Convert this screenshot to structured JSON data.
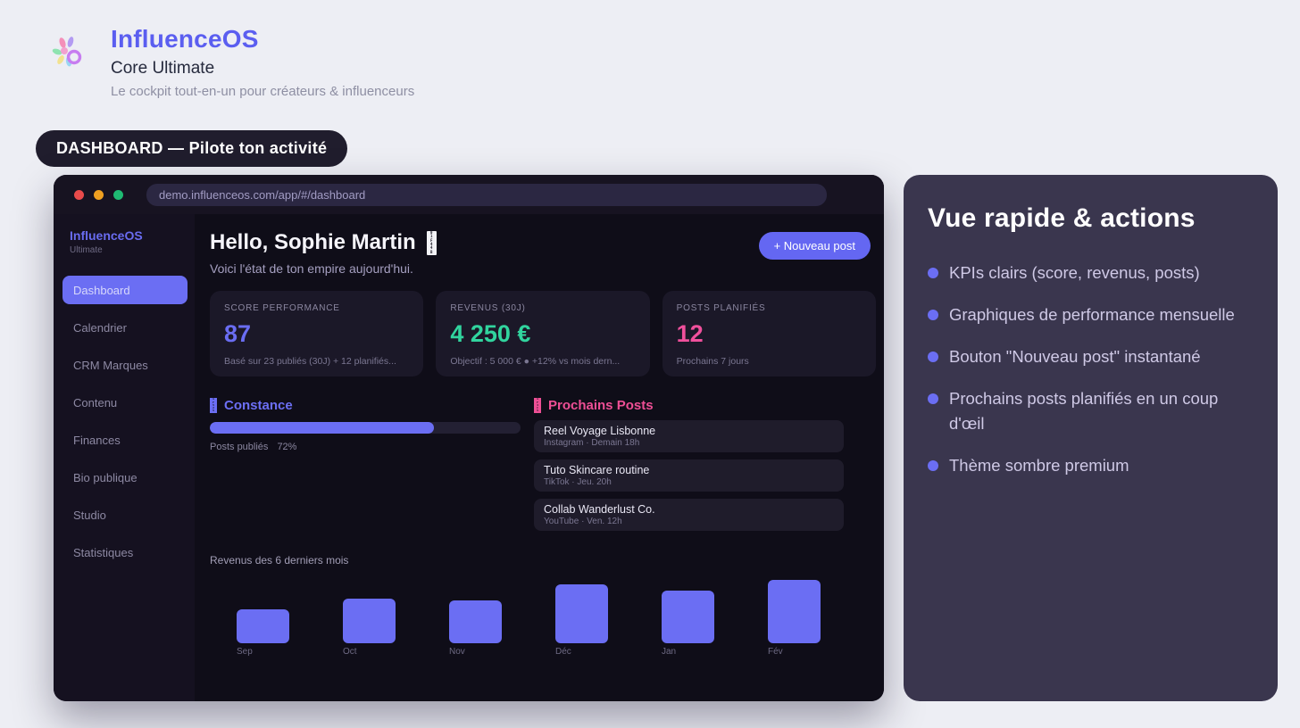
{
  "colors": {
    "accent_indigo": "#6b6ef3",
    "kpi_green": "#31d49e",
    "kpi_pink": "#f0509c",
    "traffic_red": "#e94b4b",
    "traffic_yellow": "#efa021",
    "traffic_green": "#1fba72",
    "panel_bg": "#3a364e",
    "window_bg": "#16131f"
  },
  "hero": {
    "title": "InfluenceOS",
    "subtitle": "Core Ultimate",
    "tagline": "Le cockpit tout-en-un pour créateurs & influenceurs"
  },
  "section_badge": "DASHBOARD — Pilote ton activité",
  "browser": {
    "url": "demo.influenceos.com/app/#/dashboard"
  },
  "sidebar": {
    "brand": "InfluenceOS",
    "plan": "Ultimate",
    "items": [
      {
        "label": "Dashboard",
        "active": true
      },
      {
        "label": "Calendrier",
        "active": false
      },
      {
        "label": "CRM Marques",
        "active": false
      },
      {
        "label": "Contenu",
        "active": false
      },
      {
        "label": "Finances",
        "active": false
      },
      {
        "label": "Bio publique",
        "active": false
      },
      {
        "label": "Studio",
        "active": false
      },
      {
        "label": "Statistiques",
        "active": false
      }
    ]
  },
  "main": {
    "greeting": "Hello, Sophie Martin",
    "greeting_emoji_hex": "01F44B",
    "subtitle": "Voici l'état de ton empire aujourd'hui.",
    "new_post_button": "+ Nouveau post",
    "kpis": [
      {
        "label": "SCORE PERFORMANCE",
        "value": "87",
        "sub": "Basé sur 23 publiés (30J) + 12 planifiés...",
        "color": "#6a6df2"
      },
      {
        "label": "REVENUS (30J)",
        "value": "4 250 €",
        "sub": "Objectif : 5 000 €  ●  +12% vs mois dern...",
        "color": "#31d49e"
      },
      {
        "label": "POSTS PLANIFIÉS",
        "value": "12",
        "sub": "Prochains 7 jours",
        "color": "#f0509c"
      }
    ],
    "constance": {
      "title": "Constance",
      "emoji_hex": "1F525",
      "progress_pct": 72,
      "progress_label": "Posts publiés",
      "progress_value": "72%"
    },
    "upcoming": {
      "title": "Prochains Posts",
      "emoji_hex": "1F4C5",
      "items": [
        {
          "title": "Reel Voyage Lisbonne",
          "meta": "Instagram  ·  Demain 18h"
        },
        {
          "title": "Tuto Skincare routine",
          "meta": "TikTok  ·  Jeu. 20h"
        },
        {
          "title": "Collab Wanderlust Co.",
          "meta": "YouTube  ·  Ven. 12h"
        }
      ]
    }
  },
  "chart_data": {
    "type": "bar",
    "title": "Revenus des 6 derniers mois",
    "categories": [
      "Sep",
      "Oct",
      "Nov",
      "Déc",
      "Jan",
      "Fév"
    ],
    "values": [
      54,
      70,
      68,
      93,
      83,
      100
    ],
    "value_unit": "percent_of_tallest_bar (no numeric axis shown)",
    "bar_color": "#6b6ef3",
    "grid": false,
    "legend": false
  },
  "side_panel": {
    "title": "Vue rapide & actions",
    "bullets": [
      "KPIs clairs (score, revenus, posts)",
      "Graphiques de performance mensuelle",
      "Bouton \"Nouveau post\" instantané",
      "Prochains posts planifiés en un coup d'œil",
      "Thème sombre premium"
    ]
  }
}
